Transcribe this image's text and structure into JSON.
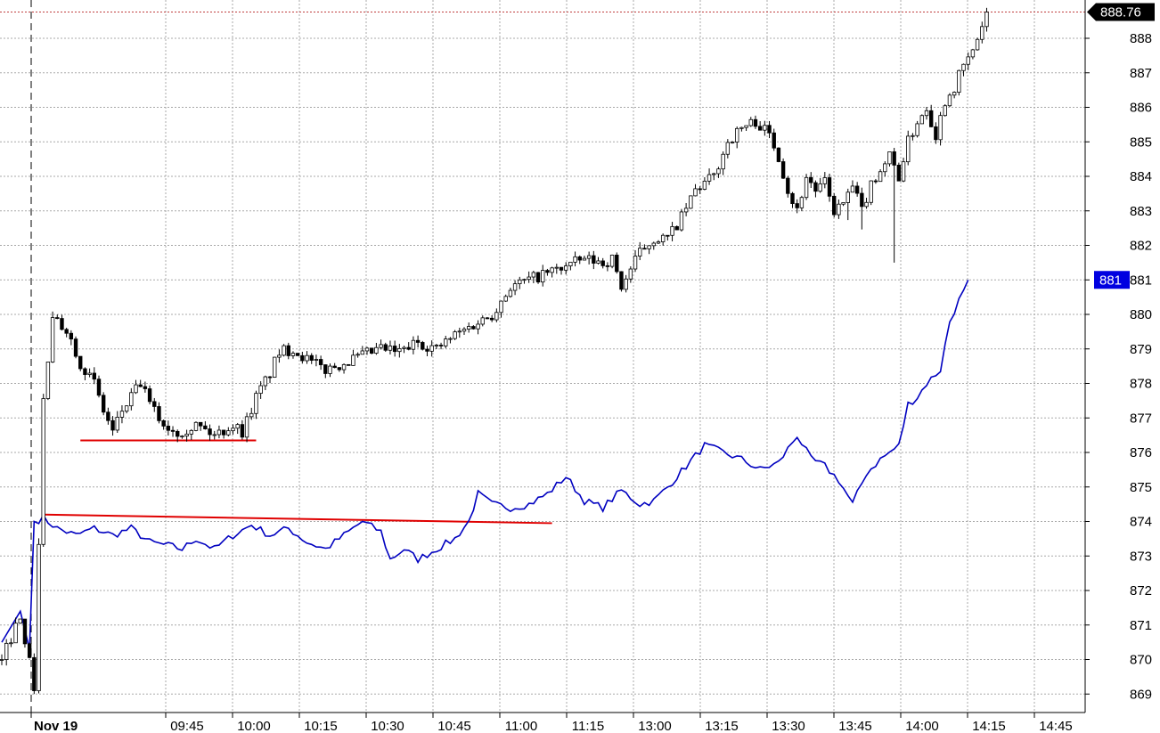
{
  "chart_data": {
    "type": "line",
    "title": "",
    "xlabel": "",
    "ylabel": "",
    "ylim": [
      868.5,
      888.85
    ],
    "grid": true,
    "axis_side": "right",
    "date_label": "Nov 19",
    "x_tick_labels": [
      "09:45",
      "10:00",
      "10:15",
      "10:30",
      "10:45",
      "11:00",
      "11:15",
      "13:00",
      "13:15",
      "13:30",
      "13:45",
      "14:00",
      "14:15",
      "14:45"
    ],
    "y_ticks": [
      869,
      870,
      871,
      872,
      873,
      874,
      875,
      876,
      877,
      878,
      879,
      880,
      881,
      882,
      883,
      884,
      885,
      886,
      887,
      888
    ],
    "last_price_label": "888.76",
    "last_price": 888.76,
    "blue_last_label": "881",
    "blue_last": 881,
    "colors": {
      "candle_up_fill": "#ffffff",
      "candle_down_fill": "#000000",
      "candle_outline": "#000000",
      "blue_line": "#0000c0",
      "support_line": "#e00000",
      "grid": "#a8a8a8",
      "last_price_tag": "#000000",
      "blue_tag": "#0000e0"
    },
    "candles_close_anchors": [
      [
        0,
        870.0
      ],
      [
        4,
        871.3
      ],
      [
        7,
        869.2
      ],
      [
        9,
        877.5
      ],
      [
        11,
        879.8
      ],
      [
        14,
        879.6
      ],
      [
        17,
        878.6
      ],
      [
        20,
        878.0
      ],
      [
        22,
        877.2
      ],
      [
        24,
        876.6
      ],
      [
        26,
        877.2
      ],
      [
        30,
        878.0
      ],
      [
        32,
        877.4
      ],
      [
        35,
        876.8
      ],
      [
        38,
        876.6
      ],
      [
        42,
        876.8
      ],
      [
        46,
        876.5
      ],
      [
        50,
        876.8
      ],
      [
        52,
        876.6
      ],
      [
        55,
        877.6
      ],
      [
        58,
        878.3
      ],
      [
        60,
        878.9
      ],
      [
        63,
        879.0
      ],
      [
        67,
        878.6
      ],
      [
        70,
        878.4
      ],
      [
        74,
        878.6
      ],
      [
        78,
        878.8
      ],
      [
        82,
        879.0
      ],
      [
        86,
        878.9
      ],
      [
        90,
        879.2
      ],
      [
        94,
        879.0
      ],
      [
        98,
        879.4
      ],
      [
        102,
        879.7
      ],
      [
        106,
        880.0
      ],
      [
        110,
        880.8
      ],
      [
        114,
        881.0
      ],
      [
        118,
        881.2
      ],
      [
        122,
        881.4
      ],
      [
        126,
        881.6
      ],
      [
        130,
        881.5
      ],
      [
        132,
        881.6
      ],
      [
        134,
        880.8
      ],
      [
        136,
        881.3
      ],
      [
        138,
        881.8
      ],
      [
        141,
        882.2
      ],
      [
        144,
        882.2
      ],
      [
        147,
        882.8
      ],
      [
        150,
        883.6
      ],
      [
        154,
        884.0
      ],
      [
        157,
        885.0
      ],
      [
        160,
        885.4
      ],
      [
        163,
        885.6
      ],
      [
        166,
        885.2
      ],
      [
        168,
        884.6
      ],
      [
        170,
        883.6
      ],
      [
        172,
        883.0
      ],
      [
        174,
        884.0
      ],
      [
        176,
        883.6
      ],
      [
        178,
        883.8
      ],
      [
        180,
        883.0
      ],
      [
        182,
        883.2
      ],
      [
        184,
        883.7
      ],
      [
        186,
        883.0
      ],
      [
        188,
        883.8
      ],
      [
        190,
        884.2
      ],
      [
        192,
        884.6
      ],
      [
        194,
        884.0
      ],
      [
        196,
        885.0
      ],
      [
        198,
        885.6
      ],
      [
        200,
        886.0
      ],
      [
        202,
        885.2
      ],
      [
        204,
        886.2
      ],
      [
        206,
        886.6
      ],
      [
        208,
        887.2
      ],
      [
        210,
        887.6
      ],
      [
        213,
        888.76
      ]
    ],
    "blue_line_anchors": [
      [
        0,
        870.5
      ],
      [
        4,
        871.4
      ],
      [
        6,
        870.3
      ],
      [
        7,
        874.0
      ],
      [
        9,
        874.1
      ],
      [
        12,
        873.8
      ],
      [
        16,
        873.6
      ],
      [
        20,
        873.8
      ],
      [
        24,
        873.6
      ],
      [
        28,
        873.8
      ],
      [
        32,
        873.4
      ],
      [
        36,
        873.3
      ],
      [
        39,
        873.2
      ],
      [
        42,
        873.5
      ],
      [
        46,
        873.2
      ],
      [
        50,
        873.6
      ],
      [
        54,
        873.9
      ],
      [
        58,
        873.6
      ],
      [
        62,
        873.8
      ],
      [
        66,
        873.4
      ],
      [
        70,
        873.2
      ],
      [
        74,
        873.6
      ],
      [
        78,
        874.0
      ],
      [
        82,
        873.7
      ],
      [
        84,
        872.9
      ],
      [
        87,
        873.2
      ],
      [
        90,
        872.9
      ],
      [
        94,
        873.2
      ],
      [
        98,
        873.5
      ],
      [
        101,
        874.0
      ],
      [
        103,
        874.8
      ],
      [
        106,
        874.5
      ],
      [
        110,
        874.4
      ],
      [
        114,
        874.5
      ],
      [
        118,
        874.8
      ],
      [
        122,
        875.3
      ],
      [
        126,
        874.6
      ],
      [
        130,
        874.4
      ],
      [
        134,
        874.9
      ],
      [
        138,
        874.5
      ],
      [
        141,
        874.6
      ],
      [
        144,
        875.0
      ],
      [
        148,
        875.6
      ],
      [
        152,
        876.2
      ],
      [
        156,
        876.0
      ],
      [
        160,
        875.8
      ],
      [
        164,
        875.5
      ],
      [
        168,
        875.7
      ],
      [
        172,
        876.5
      ],
      [
        175,
        875.8
      ],
      [
        178,
        875.6
      ],
      [
        181,
        875.2
      ],
      [
        184,
        874.5
      ],
      [
        187,
        875.4
      ],
      [
        190,
        875.8
      ],
      [
        194,
        876.2
      ],
      [
        196,
        877.4
      ],
      [
        198,
        877.6
      ],
      [
        200,
        878.0
      ],
      [
        203,
        878.4
      ],
      [
        205,
        879.8
      ],
      [
        207,
        880.4
      ],
      [
        209,
        881.0
      ]
    ],
    "annotation_lines": [
      {
        "from": [
          17,
          876.35
        ],
        "to": [
          55,
          876.35
        ]
      },
      {
        "from": [
          9,
          874.2
        ],
        "to": [
          119,
          873.95
        ]
      }
    ]
  }
}
